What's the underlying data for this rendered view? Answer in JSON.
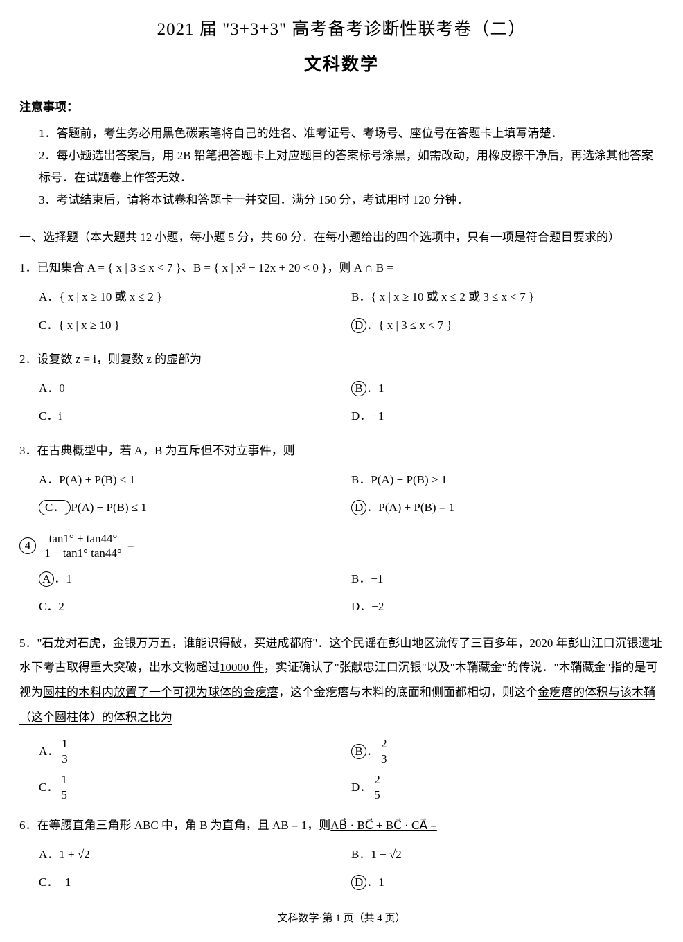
{
  "header": {
    "title_main": "2021 届 \"3+3+3\" 高考备考诊断性联考卷（二）",
    "title_sub": "文科数学"
  },
  "notice": {
    "head": "注意事项：",
    "items": [
      "1．答题前，考生务必用黑色碳素笔将自己的姓名、准考证号、考场号、座位号在答题卡上填写清楚．",
      "2．每小题选出答案后，用 2B 铅笔把答题卡上对应题目的答案标号涂黑，如需改动，用橡皮擦干净后，再选涂其他答案标号．在试题卷上作答无效．",
      "3．考试结束后，请将本试卷和答题卡一并交回．满分 150 分，考试用时 120 分钟．"
    ]
  },
  "section1": {
    "head": "一、选择题（本大题共 12 小题，每小题 5 分，共 60 分．在每小题给出的四个选项中，只有一项是符合题目要求的）"
  },
  "q1": {
    "stem": "1．已知集合 A = { x | 3 ≤ x < 7 }、B = { x | x² − 12x + 20 < 0 }，则 A ∩ B =",
    "A": "{ x | x ≥ 10 或 x ≤ 2 }",
    "B": "{ x | x ≥ 10 或 x ≤ 2 或 3 ≤ x < 7 }",
    "C": "{ x | x ≥ 10 }",
    "D": "{ x | 3 ≤ x < 7 }"
  },
  "q2": {
    "stem": "2．设复数 z = i，则复数 z 的虚部为",
    "A": "0",
    "B": "1",
    "C": "i",
    "D": "−1"
  },
  "q3": {
    "stem": "3．在古典概型中，若 A，B 为互斥但不对立事件，则",
    "A": "P(A) + P(B) < 1",
    "B": "P(A) + P(B) > 1",
    "C": "P(A) + P(B) ≤ 1",
    "D": "P(A) + P(B) = 1"
  },
  "q4": {
    "num": "4",
    "frac_num": "tan1° + tan44°",
    "frac_den": "1 − tan1° tan44°",
    "eq": "=",
    "A": "1",
    "B": "−1",
    "C": "2",
    "D": "−2"
  },
  "q5": {
    "stem_a": "5．\"石龙对石虎，金银万万五，谁能识得破，买进成都府\"．这个民谣在彭山地区流传了三百多年，2020 年彭山江口沉银遗址水下考古取得重大突破，出水文物超过",
    "ul1": "10000 件",
    "stem_b": "，实证确认了\"张献忠江口沉银\"以及\"木鞘藏金\"的传说．\"木鞘藏金\"指的是可视为",
    "ul2": "圆柱的木料内放置了一个可视为球体的金疙瘩",
    "stem_c": "，这个金疙瘩与木料的底面和侧面都相切，则这个",
    "ul3": "金疙瘩的体积与该木鞘（这个圆柱体）的体积之比为",
    "A_num": "1",
    "A_den": "3",
    "B_num": "2",
    "B_den": "3",
    "C_num": "1",
    "C_den": "5",
    "D_num": "2",
    "D_den": "5"
  },
  "q6": {
    "stem_a": "6．在等腰直角三角形 ABC 中，角 B 为直角，且 AB = 1，则",
    "vec_expr": "AB⃗ · BC⃗ + BC⃗ · CA⃗ =",
    "A": "1 + √2",
    "B": "1 − √2",
    "C": "−1",
    "D": "1"
  },
  "footer": "文科数学·第 1 页（共 4 页）",
  "labels": {
    "A": "A．",
    "B": "B．",
    "C": "C．",
    "D": "D．"
  }
}
